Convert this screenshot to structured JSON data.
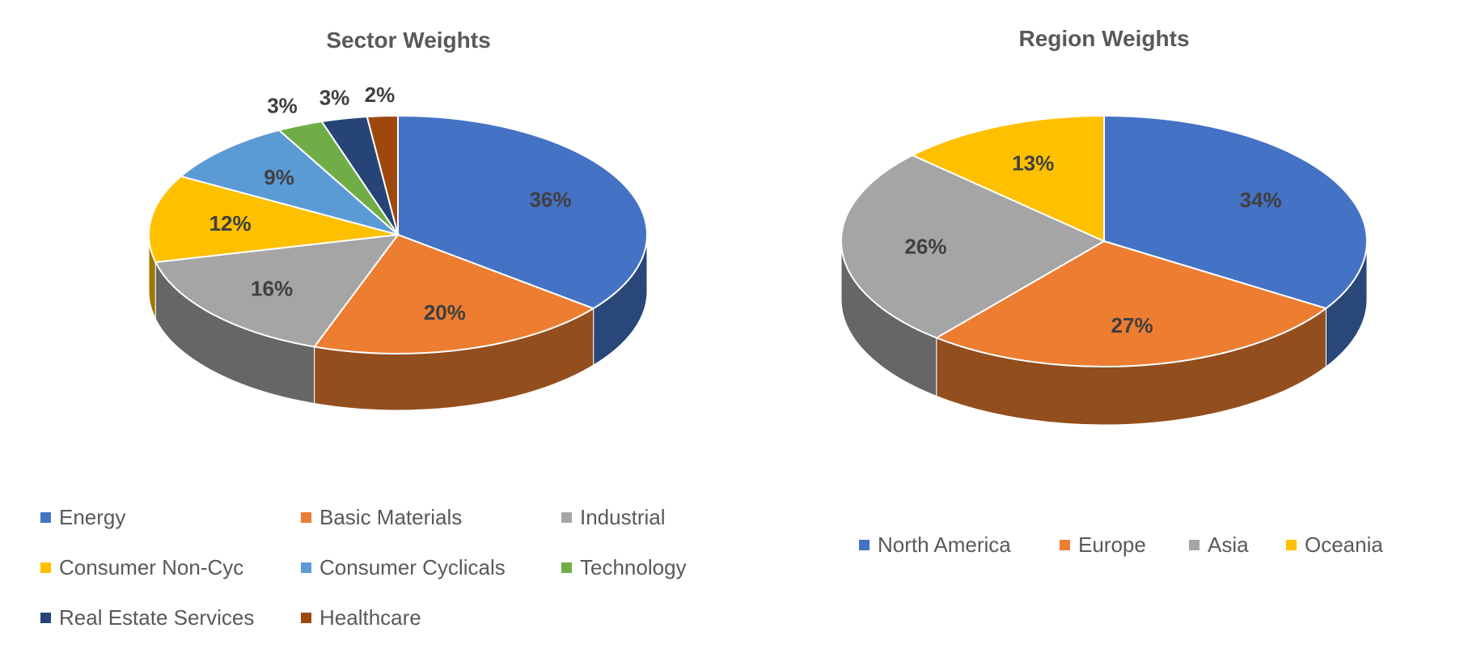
{
  "chart_data": [
    {
      "type": "pie",
      "title": "Sector Weights",
      "style": "3d",
      "categories": [
        "Energy",
        "Basic Materials",
        "Industrial",
        "Consumer Non-Cyc",
        "Consumer Cyclicals",
        "Technology",
        "Real Estate Services",
        "Healthcare"
      ],
      "values": [
        36,
        20,
        16,
        12,
        9,
        3,
        3,
        2
      ],
      "labels": [
        "36%",
        "20%",
        "16%",
        "12%",
        "9%",
        "3%",
        "3%",
        "2%"
      ],
      "colors": [
        "#4472C4",
        "#ED7D31",
        "#A5A5A5",
        "#FFC000",
        "#5B9BD5",
        "#70AD47",
        "#264478",
        "#9E480E"
      ],
      "legend_position": "bottom"
    },
    {
      "type": "pie",
      "title": "Region Weights",
      "style": "3d",
      "categories": [
        "North America",
        "Europe",
        "Asia",
        "Oceania"
      ],
      "values": [
        34,
        27,
        26,
        13
      ],
      "labels": [
        "34%",
        "27%",
        "26%",
        "13%"
      ],
      "colors": [
        "#4472C4",
        "#ED7D31",
        "#A5A5A5",
        "#FFC000"
      ],
      "legend_position": "bottom"
    }
  ]
}
